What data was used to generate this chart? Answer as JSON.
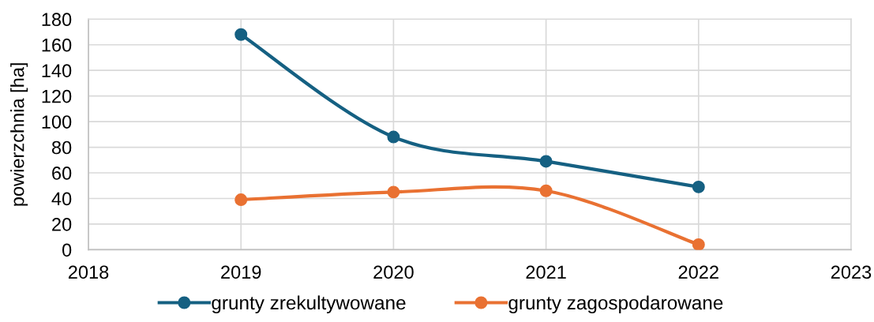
{
  "chart_data": {
    "type": "line",
    "ylabel": "powierzchnia [ha]",
    "x": [
      2019,
      2020,
      2021,
      2022
    ],
    "series": [
      {
        "name": "grunty zrekultywowane",
        "color": "#156082",
        "values": [
          168,
          88,
          69,
          49
        ]
      },
      {
        "name": "grunty zagospodarowane",
        "color": "#e97132",
        "values": [
          39,
          45,
          46,
          4
        ]
      }
    ],
    "xlim": [
      2018,
      2023
    ],
    "xticks": [
      2018,
      2019,
      2020,
      2021,
      2022,
      2023
    ],
    "ylim": [
      0,
      180
    ],
    "yticks": [
      0,
      20,
      40,
      60,
      80,
      100,
      120,
      140,
      160,
      180
    ],
    "grid": true,
    "legend": "bottom",
    "marker": "circle",
    "line_style": "solid"
  }
}
